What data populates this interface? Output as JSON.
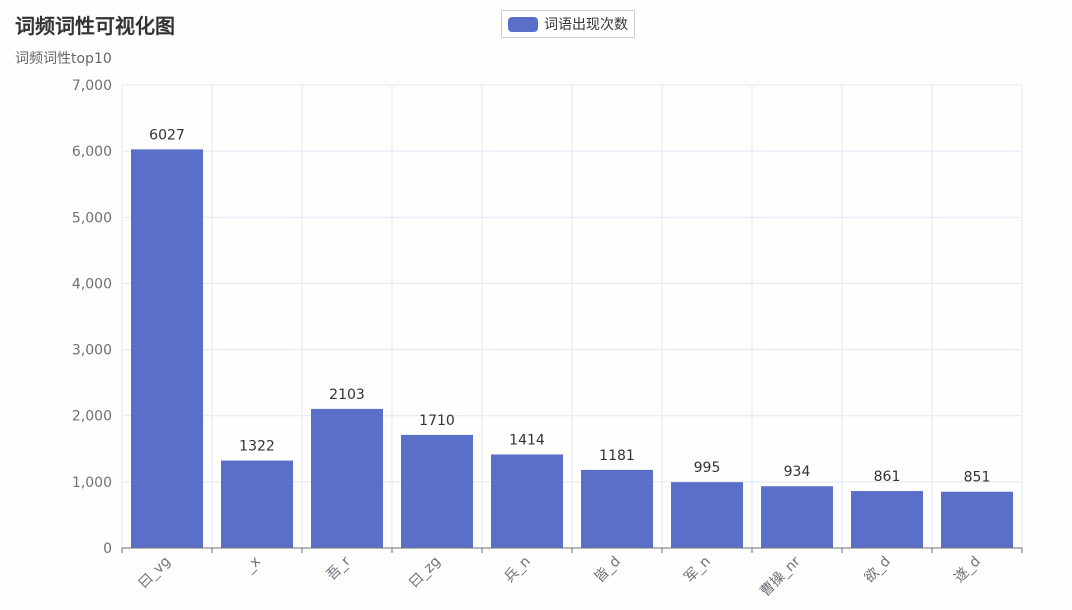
{
  "colors": {
    "bar": "#5a6fc8",
    "grid": "#e0e6f1",
    "axis": "#6e7079",
    "label": "#333333"
  },
  "chart_data": {
    "type": "bar",
    "title": "词频词性可视化图",
    "subtitle": "词频词性top10",
    "categories": [
      "曰_vg",
      "_x",
      "吾_r",
      "曰_zg",
      "兵_n",
      "皆_d",
      "军_n",
      "曹操_nr",
      "欲_d",
      "遂_d"
    ],
    "series": [
      {
        "name": "词语出现次数",
        "values": [
          6027,
          1322,
          2103,
          1710,
          1414,
          1181,
          995,
          934,
          861,
          851
        ]
      }
    ],
    "ylim": [
      0,
      7000
    ],
    "yticks": [
      "0",
      "1,000",
      "2,000",
      "3,000",
      "4,000",
      "5,000",
      "6,000",
      "7,000"
    ],
    "grid": true,
    "legend_position": "top-center",
    "data_labels": true
  }
}
